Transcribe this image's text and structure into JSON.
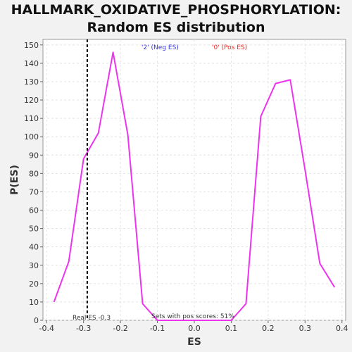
{
  "chart_data": {
    "type": "line",
    "title_lines": [
      "HALLMARK_OXIDATIVE_PHOSPHORYLATION:",
      "Random ES distribution"
    ],
    "xlabel": "ES",
    "ylabel": "P(ES)",
    "xlim": [
      -0.41,
      0.41
    ],
    "ylim": [
      0,
      153
    ],
    "xticks": [
      -0.4,
      -0.3,
      -0.2,
      -0.1,
      0.0,
      0.1,
      0.2,
      0.3,
      0.4
    ],
    "xtick_labels": [
      "-0.4",
      "-0.3",
      "-0.2",
      "-0.1",
      "0.0",
      "0.1",
      "0.2",
      "0.3",
      "0.4"
    ],
    "yticks": [
      0,
      10,
      20,
      30,
      40,
      50,
      60,
      70,
      80,
      90,
      100,
      110,
      120,
      130,
      140,
      150
    ],
    "grid": true,
    "series": [
      {
        "color": "#ee33ee",
        "x": [
          -0.38,
          -0.34,
          -0.3,
          -0.26,
          -0.22,
          -0.18,
          -0.14,
          -0.1,
          -0.06,
          -0.02,
          0.02,
          0.06,
          0.1,
          0.14,
          0.18,
          0.22,
          0.26,
          0.3,
          0.34,
          0.38
        ],
        "y": [
          10,
          32,
          88,
          102,
          146,
          101,
          9,
          0,
          0,
          0,
          0,
          0,
          0,
          9,
          111,
          129,
          131,
          82,
          31,
          18
        ]
      }
    ],
    "real_es": -0.29,
    "annotations": {
      "neg_label": "'2' (Neg ES)",
      "pos_label": "'0' (Pos ES)",
      "real_es_label": "Real ES -0.3",
      "pos_scores_label": "Sets with pos scores: 51%"
    },
    "colors": {
      "neg": "#3333dd",
      "pos": "#ee2222",
      "real_es_line": "#000000"
    }
  }
}
